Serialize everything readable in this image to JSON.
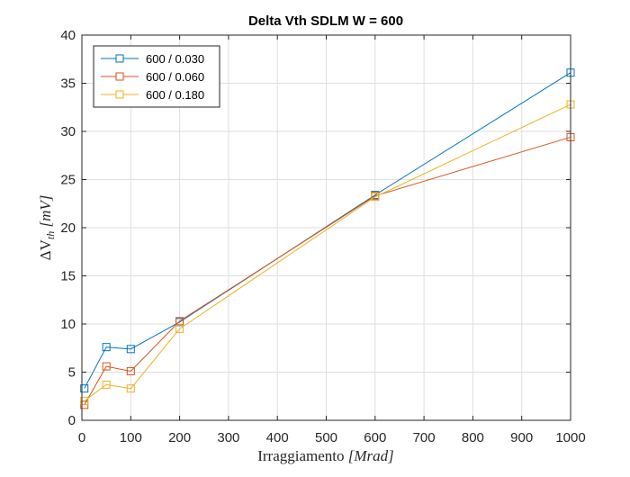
{
  "chart_data": {
    "type": "line",
    "title": "Delta Vth SDLM W = 600",
    "xlabel": "Irraggiamento [Mrad]",
    "ylabel": "ΔVth [mV]",
    "ylabel_main": "ΔV",
    "ylabel_sub": "th",
    "ylabel_unit": " [mV]",
    "xlabel_main": "Irraggiamento ",
    "xlabel_unit": "[Mrad]",
    "xlim": [
      0,
      1000
    ],
    "ylim": [
      0,
      40
    ],
    "xticks": [
      "0",
      "100",
      "200",
      "300",
      "400",
      "500",
      "600",
      "700",
      "800",
      "900",
      "1000"
    ],
    "yticks": [
      "0",
      "5",
      "10",
      "15",
      "20",
      "25",
      "30",
      "35",
      "40"
    ],
    "grid": true,
    "legend_position": "top-left",
    "marker": "square",
    "series": [
      {
        "name": "600 / 0.030",
        "color": "#0072bd",
        "x": [
          5,
          50,
          100,
          200,
          600,
          1000
        ],
        "y": [
          3.3,
          7.6,
          7.4,
          10.2,
          23.4,
          36.1
        ]
      },
      {
        "name": "600 / 0.060",
        "color": "#d95319",
        "x": [
          5,
          50,
          100,
          200,
          600,
          1000
        ],
        "y": [
          1.6,
          5.6,
          5.1,
          10.3,
          23.3,
          29.4
        ]
      },
      {
        "name": "600 / 0.180",
        "color": "#edb120",
        "x": [
          5,
          50,
          100,
          200,
          600,
          1000
        ],
        "y": [
          2.0,
          3.7,
          3.3,
          9.5,
          23.2,
          32.8
        ]
      }
    ]
  }
}
